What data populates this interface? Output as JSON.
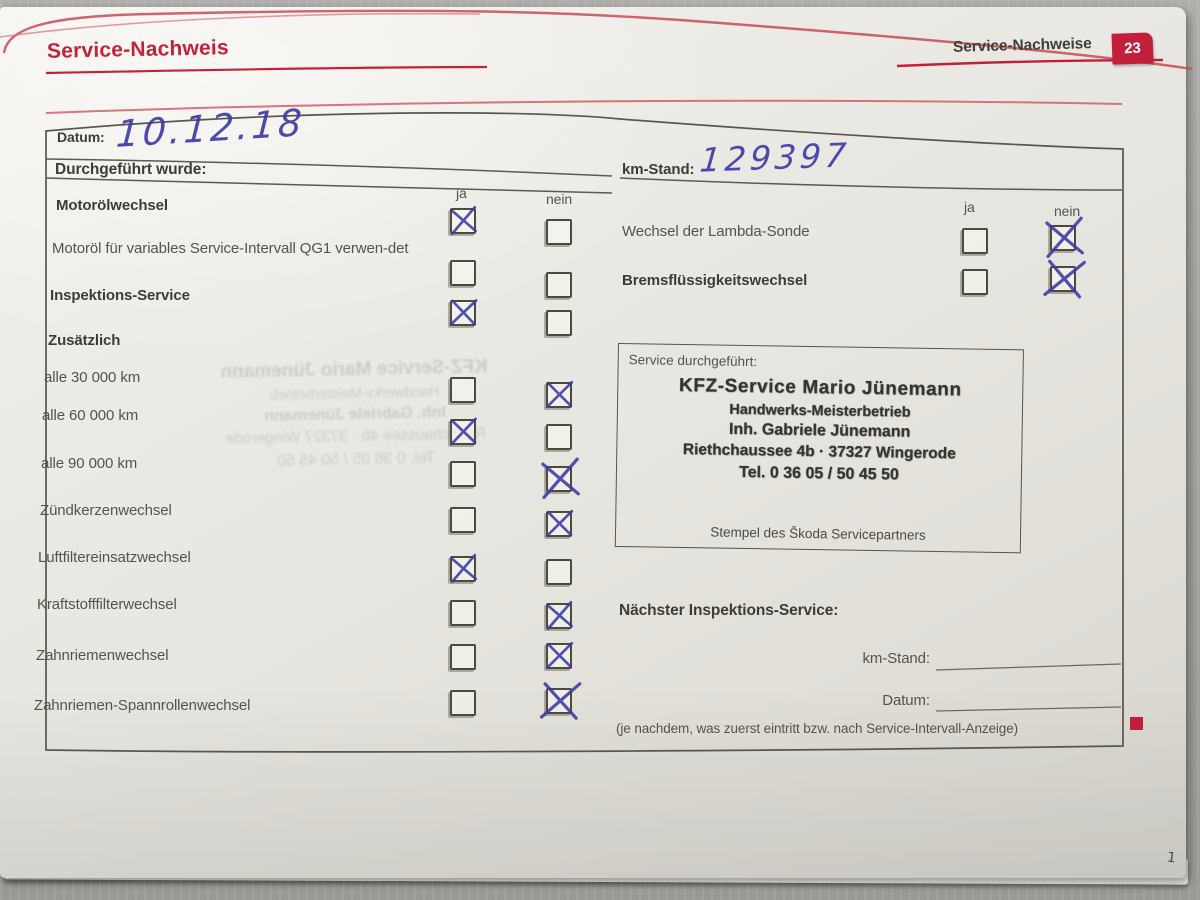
{
  "header": {
    "title": "Service-Nachweis",
    "right_title": "Service-Nachweise",
    "page_tab": "23"
  },
  "datum": {
    "label": "Datum:",
    "value": "10.12.18"
  },
  "km_stand": {
    "label": "km-Stand:",
    "value": "129397"
  },
  "columns": {
    "ja": "ja",
    "nein": "nein"
  },
  "left": {
    "heading": "Durchgeführt wurde:",
    "items": [
      {
        "label": "Motorölwechsel",
        "strong": true,
        "boxes": true,
        "checked": "ja"
      },
      {
        "label": "Motoröl für variables Service-Intervall QG1 verwen-det",
        "strong": false,
        "boxes": true,
        "checked": "none"
      },
      {
        "label": "Inspektions-Service",
        "strong": true,
        "boxes": true,
        "checked": "ja"
      },
      {
        "label": "Zusätzlich",
        "strong": true,
        "boxes": false,
        "checked": "none"
      },
      {
        "label": "alle 30 000 km",
        "strong": false,
        "boxes": true,
        "checked": "nein"
      },
      {
        "label": "alle 60 000 km",
        "strong": false,
        "boxes": true,
        "checked": "ja"
      },
      {
        "label": "alle 90 000 km",
        "strong": false,
        "boxes": true,
        "checked": "nein"
      },
      {
        "label": "Zündkerzenwechsel",
        "strong": false,
        "boxes": true,
        "checked": "nein"
      },
      {
        "label": "Luftfiltereinsatzwechsel",
        "strong": false,
        "boxes": true,
        "checked": "ja"
      },
      {
        "label": "Kraftstofffilterwechsel",
        "strong": false,
        "boxes": true,
        "checked": "nein"
      },
      {
        "label": "Zahnriemenwechsel",
        "strong": false,
        "boxes": true,
        "checked": "nein"
      },
      {
        "label": "Zahnriemen-Spannrollenwechsel",
        "strong": false,
        "boxes": true,
        "checked": "nein"
      }
    ]
  },
  "right": {
    "items": [
      {
        "label": "Wechsel der Lambda-Sonde",
        "strong": false,
        "checked": "nein"
      },
      {
        "label": "Bremsflüssigkeitswechsel",
        "strong": true,
        "checked": "nein"
      }
    ]
  },
  "stamp": {
    "label": "Service durchgeführt:",
    "lines": [
      "KFZ-Service Mario Jünemann",
      "Handwerks-Meisterbetrieb",
      "Inh. Gabriele Jünemann",
      "Riethchaussee 4b · 37327 Wingerode",
      "Tel. 0 36 05 / 50 45 50"
    ],
    "caption": "Stempel des Škoda Servicepartners"
  },
  "next_service": {
    "heading": "Nächster Inspektions-Service:",
    "km_label": "km-Stand:",
    "datum_label": "Datum:",
    "note": "(je nachdem, was zuerst eintritt bzw. nach Service-Intervall-Anzeige)"
  },
  "annotations": {
    "page_corner_mark": "1"
  },
  "colors": {
    "accent_red": "#c2233c",
    "ink_blue": "#3c3aa6",
    "paper": "#e9e7e1",
    "text": "#55534a"
  }
}
